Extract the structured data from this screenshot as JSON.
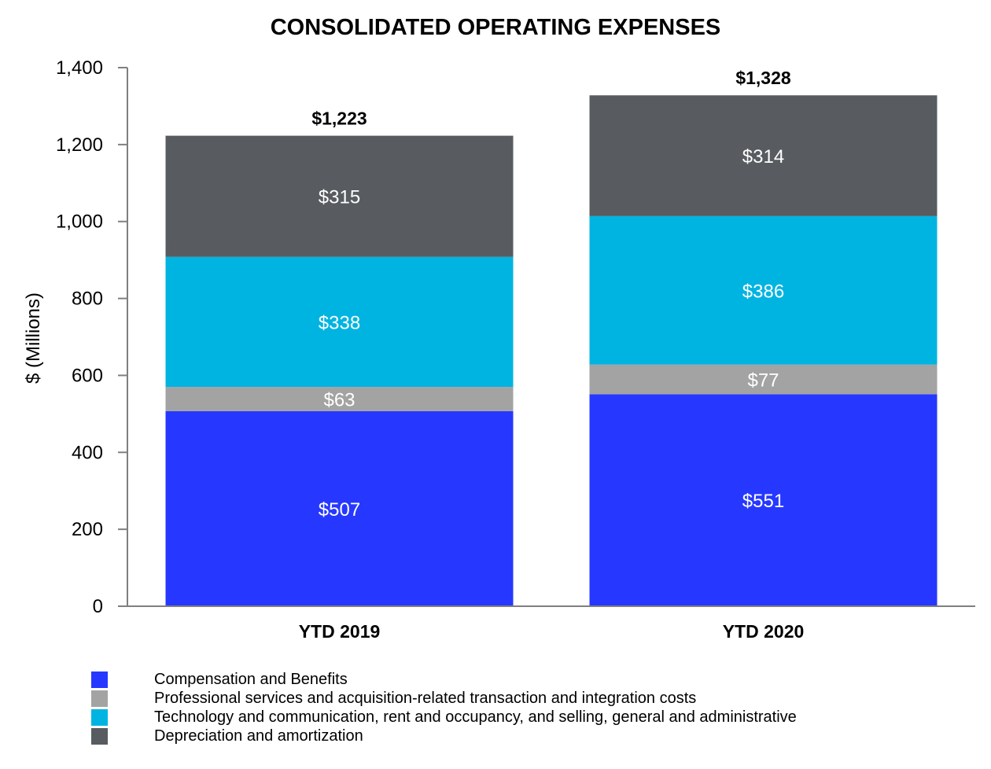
{
  "chart_data": {
    "type": "bar",
    "stacked": true,
    "title": "CONSOLIDATED OPERATING EXPENSES",
    "ylabel": "$ (Millions)",
    "xlabel": "",
    "ylim": [
      0,
      1400
    ],
    "yticks": [
      0,
      200,
      400,
      600,
      800,
      1000,
      1200,
      1400
    ],
    "ytick_labels": [
      "0",
      "200",
      "400",
      "600",
      "800",
      "1,000",
      "1,200",
      "1,400"
    ],
    "categories": [
      "YTD 2019",
      "YTD 2020"
    ],
    "totals": [
      1223,
      1328
    ],
    "total_labels": [
      "$1,223",
      "$1,328"
    ],
    "series": [
      {
        "name": "Compensation and Benefits",
        "color": "#2638FF",
        "values": [
          507,
          551
        ],
        "labels": [
          "$507",
          "$551"
        ]
      },
      {
        "name": "Professional services and acquisition-related transaction and integration costs",
        "color": "#A3A3A3",
        "values": [
          63,
          77
        ],
        "labels": [
          "$63",
          "$77"
        ]
      },
      {
        "name": "Technology and communication, rent and occupancy, and selling, general and administrative",
        "color": "#00B4E1",
        "values": [
          338,
          386
        ],
        "labels": [
          "$338",
          "$386"
        ]
      },
      {
        "name": "Depreciation and amortization",
        "color": "#585C60",
        "values": [
          315,
          314
        ],
        "labels": [
          "$315",
          "$314"
        ]
      }
    ],
    "grid": false,
    "legend_position": "bottom-left",
    "axis_color": "#7F7F7F"
  }
}
